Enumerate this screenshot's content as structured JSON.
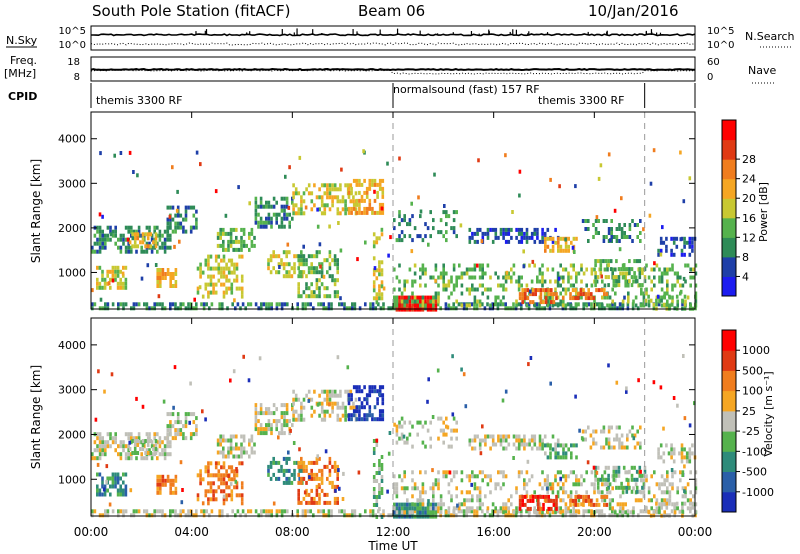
{
  "header": {
    "station": "South Pole Station (fitACF)",
    "beam": "Beam 06",
    "date": "10/Jan/2016"
  },
  "summary_panels": {
    "nsky_label": "N.Sky",
    "nsearch_label": "N.Search",
    "left_ticks_top": [
      "10^5",
      "10^0"
    ],
    "right_ticks_top": [
      "10^5",
      "10^0"
    ],
    "freq_label_1": "Freq.",
    "freq_label_2": "[MHz]",
    "freq_ticks": [
      "18",
      "8"
    ],
    "nave_label": "Nave",
    "nave_ticks": [
      "60",
      "0"
    ],
    "cpid_label": "CPID",
    "cpid_segments": [
      {
        "label": "themis 3300 RF",
        "start_hour": 0
      },
      {
        "label": "normalsound (fast) 157 RF",
        "start_hour": 12
      },
      {
        "label": "themis 3300 RF",
        "start_hour": 22
      }
    ]
  },
  "chart_data": [
    {
      "type": "heatmap",
      "name": "power",
      "ylabel": "Slant Range [km]",
      "ylim": [
        180,
        4600
      ],
      "xlim_hours": [
        0,
        24
      ],
      "y_ticks": [
        1000,
        2000,
        3000,
        4000
      ],
      "colorbar": {
        "label": "Power [dB]",
        "ticks": [
          "4",
          "8",
          "12",
          "16",
          "20",
          "24",
          "28"
        ],
        "colors": [
          "#1c1cf0",
          "#1e3fa8",
          "#2e8b57",
          "#55b24d",
          "#c8c832",
          "#f5a623",
          "#f07d1e",
          "#e03a14",
          "#ff0000"
        ]
      }
    },
    {
      "type": "heatmap",
      "name": "velocity",
      "ylabel": "Slant Range [km]",
      "ylim": [
        180,
        4600
      ],
      "xlim_hours": [
        0,
        24
      ],
      "y_ticks": [
        1000,
        2000,
        3000,
        4000
      ],
      "xlabel": "Time UT",
      "x_ticks": [
        "00:00",
        "04:00",
        "08:00",
        "12:00",
        "16:00",
        "20:00",
        "00:00"
      ],
      "colorbar": {
        "label": "Velocity [m s⁻¹]",
        "ticks": [
          "1000",
          "500",
          "100",
          "25",
          "-25",
          "-100",
          "-500",
          "-1000"
        ],
        "colors": [
          "#1a2eb8",
          "#2a5fa8",
          "#2e8b7a",
          "#55b24d",
          "#c0c0b8",
          "#f5a623",
          "#f07d1e",
          "#e03a14",
          "#ff0000"
        ]
      }
    }
  ]
}
